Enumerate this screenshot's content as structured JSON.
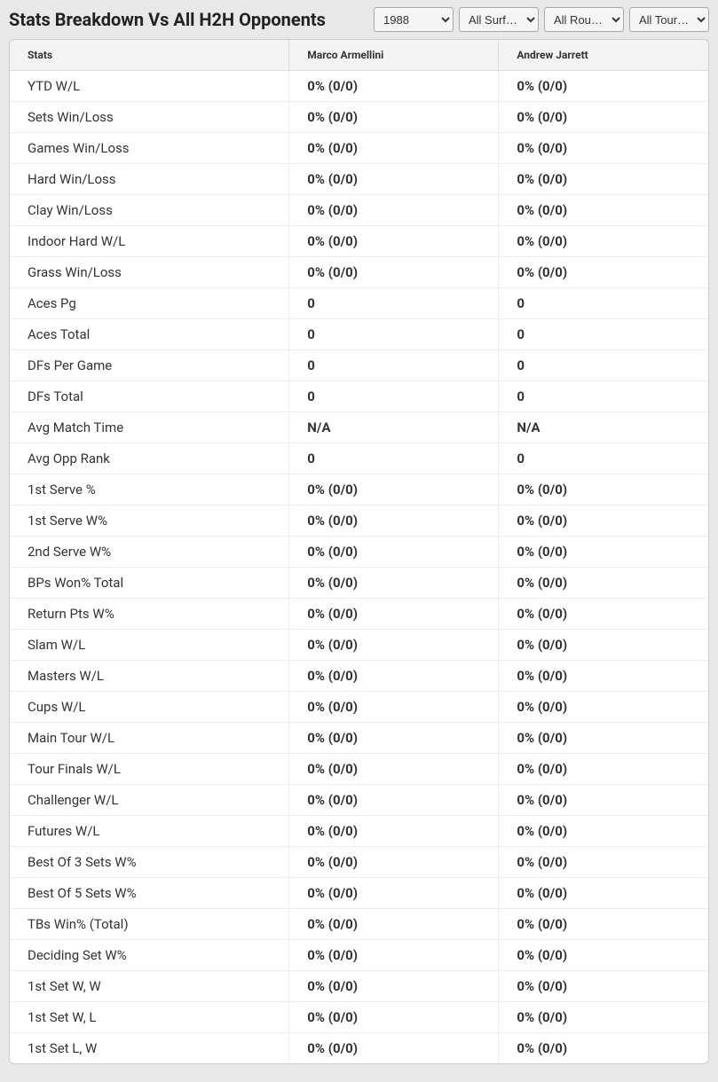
{
  "header": {
    "title": "Stats Breakdown Vs All H2H Opponents",
    "filters": {
      "year": {
        "selected": "1988",
        "options": [
          "1988"
        ]
      },
      "surface": {
        "selected": "All Surf…",
        "options": [
          "All Surf…"
        ]
      },
      "round": {
        "selected": "All Rou…",
        "options": [
          "All Rou…"
        ]
      },
      "tournament": {
        "selected": "All Tour…",
        "options": [
          "All Tour…"
        ]
      }
    }
  },
  "table": {
    "columns": [
      "Stats",
      "Marco Armellini",
      "Andrew Jarrett"
    ],
    "rows": [
      [
        "YTD W/L",
        "0% (0/0)",
        "0% (0/0)"
      ],
      [
        "Sets Win/Loss",
        "0% (0/0)",
        "0% (0/0)"
      ],
      [
        "Games Win/Loss",
        "0% (0/0)",
        "0% (0/0)"
      ],
      [
        "Hard Win/Loss",
        "0% (0/0)",
        "0% (0/0)"
      ],
      [
        "Clay Win/Loss",
        "0% (0/0)",
        "0% (0/0)"
      ],
      [
        "Indoor Hard W/L",
        "0% (0/0)",
        "0% (0/0)"
      ],
      [
        "Grass Win/Loss",
        "0% (0/0)",
        "0% (0/0)"
      ],
      [
        "Aces Pg",
        "0",
        "0"
      ],
      [
        "Aces Total",
        "0",
        "0"
      ],
      [
        "DFs Per Game",
        "0",
        "0"
      ],
      [
        "DFs Total",
        "0",
        "0"
      ],
      [
        "Avg Match Time",
        "N/A",
        "N/A"
      ],
      [
        "Avg Opp Rank",
        "0",
        "0"
      ],
      [
        "1st Serve %",
        "0% (0/0)",
        "0% (0/0)"
      ],
      [
        "1st Serve W%",
        "0% (0/0)",
        "0% (0/0)"
      ],
      [
        "2nd Serve W%",
        "0% (0/0)",
        "0% (0/0)"
      ],
      [
        "BPs Won% Total",
        "0% (0/0)",
        "0% (0/0)"
      ],
      [
        "Return Pts W%",
        "0% (0/0)",
        "0% (0/0)"
      ],
      [
        "Slam W/L",
        "0% (0/0)",
        "0% (0/0)"
      ],
      [
        "Masters W/L",
        "0% (0/0)",
        "0% (0/0)"
      ],
      [
        "Cups W/L",
        "0% (0/0)",
        "0% (0/0)"
      ],
      [
        "Main Tour W/L",
        "0% (0/0)",
        "0% (0/0)"
      ],
      [
        "Tour Finals W/L",
        "0% (0/0)",
        "0% (0/0)"
      ],
      [
        "Challenger W/L",
        "0% (0/0)",
        "0% (0/0)"
      ],
      [
        "Futures W/L",
        "0% (0/0)",
        "0% (0/0)"
      ],
      [
        "Best Of 3 Sets W%",
        "0% (0/0)",
        "0% (0/0)"
      ],
      [
        "Best Of 5 Sets W%",
        "0% (0/0)",
        "0% (0/0)"
      ],
      [
        "TBs Win% (Total)",
        "0% (0/0)",
        "0% (0/0)"
      ],
      [
        "Deciding Set W%",
        "0% (0/0)",
        "0% (0/0)"
      ],
      [
        "1st Set W, W",
        "0% (0/0)",
        "0% (0/0)"
      ],
      [
        "1st Set W, L",
        "0% (0/0)",
        "0% (0/0)"
      ],
      [
        "1st Set L, W",
        "0% (0/0)",
        "0% (0/0)"
      ]
    ]
  },
  "styles": {
    "background_color": "#e8e8e8",
    "table_bg": "#ffffff",
    "header_bg": "#f3f3f3",
    "border_color": "#dddddd",
    "row_border": "#eeeeee",
    "text_color": "#333333",
    "title_fontsize": 20,
    "header_fontsize": 12,
    "cell_fontsize": 15
  }
}
